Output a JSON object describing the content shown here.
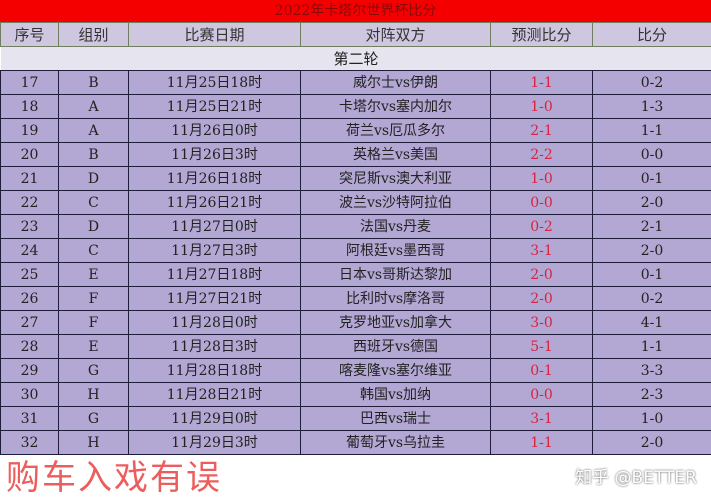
{
  "title": "2022年卡塔尔世界杯比分",
  "watermark": "购车入戏有误",
  "headers": [
    "序号",
    "组别",
    "比赛日期",
    "对阵双方",
    "预测比分",
    "比分"
  ],
  "section": "第二轮",
  "rows": [
    [
      "17",
      "B",
      "11月25日18时",
      "威尔士vs伊朗",
      "1-1",
      "0-2"
    ],
    [
      "18",
      "A",
      "11月25日21时",
      "卡塔尔vs塞内加尔",
      "1-0",
      "1-3"
    ],
    [
      "19",
      "A",
      "11月26日0时",
      "荷兰vs厄瓜多尔",
      "2-1",
      "1-1"
    ],
    [
      "20",
      "B",
      "11月26日3时",
      "英格兰vs美国",
      "2-2",
      "0-0"
    ],
    [
      "21",
      "D",
      "11月26日18时",
      "突尼斯vs澳大利亚",
      "1-0",
      "0-1"
    ],
    [
      "22",
      "C",
      "11月26日21时",
      "波兰vs沙特阿拉伯",
      "0-0",
      "2-0"
    ],
    [
      "23",
      "D",
      "11月27日0时",
      "法国vs丹麦",
      "0-2",
      "2-1"
    ],
    [
      "24",
      "C",
      "11月27日3时",
      "阿根廷vs墨西哥",
      "3-1",
      "2-0"
    ],
    [
      "25",
      "E",
      "11月27日18时",
      "日本vs哥斯达黎加",
      "2-0",
      "0-1"
    ],
    [
      "26",
      "F",
      "11月27日21时",
      "比利时vs摩洛哥",
      "2-0",
      "0-2"
    ],
    [
      "27",
      "F",
      "11月28日0时",
      "克罗地亚vs加拿大",
      "3-0",
      "4-1"
    ],
    [
      "28",
      "E",
      "11月28日3时",
      "西班牙vs德国",
      "5-1",
      "1-1"
    ],
    [
      "29",
      "G",
      "11月28日18时",
      "喀麦隆vs塞尔维亚",
      "0-1",
      "3-3"
    ],
    [
      "30",
      "H",
      "11月28日21时",
      "韩国vs加纳",
      "0-0",
      "2-3"
    ],
    [
      "31",
      "G",
      "11月29日0时",
      "巴西vs瑞士",
      "3-1",
      "1-0"
    ],
    [
      "32",
      "H",
      "11月29日3时",
      "葡萄牙vs乌拉圭",
      "1-1",
      "2-0"
    ]
  ],
  "credit": "知乎 @BETTER",
  "colors": {
    "title_bg": "#f40000",
    "row_bg": "#b3a7d3",
    "prediction_text": "#d8233f"
  }
}
